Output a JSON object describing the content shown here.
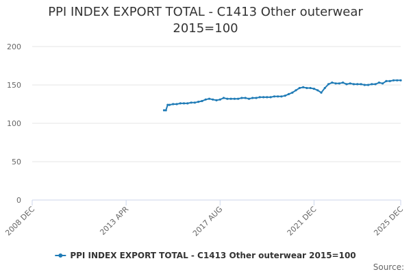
{
  "chart_data": {
    "type": "line",
    "title_line1": "PPI INDEX EXPORT TOTAL - C1413 Other outerwear",
    "title_line2": "2015=100",
    "xlabel": "",
    "ylabel": "",
    "ylim": [
      0,
      200
    ],
    "y_ticks": [
      "0",
      "50",
      "100",
      "150",
      "200"
    ],
    "x_ticks": [
      "2008 DEC",
      "2013 APR",
      "2017 AUG",
      "2021 DEC",
      "2025 DEC"
    ],
    "x_range": [
      "2008-12",
      "2025-12"
    ],
    "grid": true,
    "legend_position": "bottom",
    "color": "#1f7bb6",
    "series": [
      {
        "name": "PPI INDEX EXPORT TOTAL - C1413 Other outerwear 2015=100",
        "x": [
          "2015-01",
          "2015-02",
          "2015-03",
          "2015-04",
          "2015-06",
          "2015-08",
          "2015-10",
          "2015-12",
          "2016-02",
          "2016-04",
          "2016-06",
          "2016-08",
          "2016-10",
          "2016-12",
          "2017-02",
          "2017-04",
          "2017-06",
          "2017-08",
          "2017-10",
          "2017-12",
          "2018-02",
          "2018-04",
          "2018-06",
          "2018-08",
          "2018-10",
          "2018-12",
          "2019-02",
          "2019-04",
          "2019-06",
          "2019-08",
          "2019-10",
          "2019-12",
          "2020-02",
          "2020-04",
          "2020-06",
          "2020-08",
          "2020-10",
          "2020-12",
          "2021-02",
          "2021-04",
          "2021-06",
          "2021-08",
          "2021-10",
          "2021-12",
          "2022-02",
          "2022-04",
          "2022-06",
          "2022-08",
          "2022-10",
          "2022-12",
          "2023-02",
          "2023-04",
          "2023-06",
          "2023-08",
          "2023-10",
          "2023-12",
          "2024-02",
          "2024-04",
          "2024-06",
          "2024-08",
          "2024-10",
          "2024-12",
          "2025-02",
          "2025-04",
          "2025-06",
          "2025-08",
          "2025-10",
          "2025-12"
        ],
        "y": [
          117,
          117,
          124,
          124,
          125,
          125,
          126,
          126,
          126,
          127,
          127,
          128,
          129,
          131,
          132,
          131,
          130,
          131,
          133,
          132,
          132,
          132,
          132,
          133,
          133,
          132,
          133,
          133,
          134,
          134,
          134,
          134,
          135,
          135,
          135,
          136,
          138,
          140,
          143,
          146,
          147,
          146,
          146,
          145,
          143,
          140,
          146,
          151,
          153,
          152,
          152,
          153,
          151,
          152,
          151,
          151,
          151,
          150,
          150,
          151,
          151,
          153,
          152,
          155,
          155,
          156,
          156,
          156
        ]
      }
    ]
  },
  "source_label": "Source:"
}
